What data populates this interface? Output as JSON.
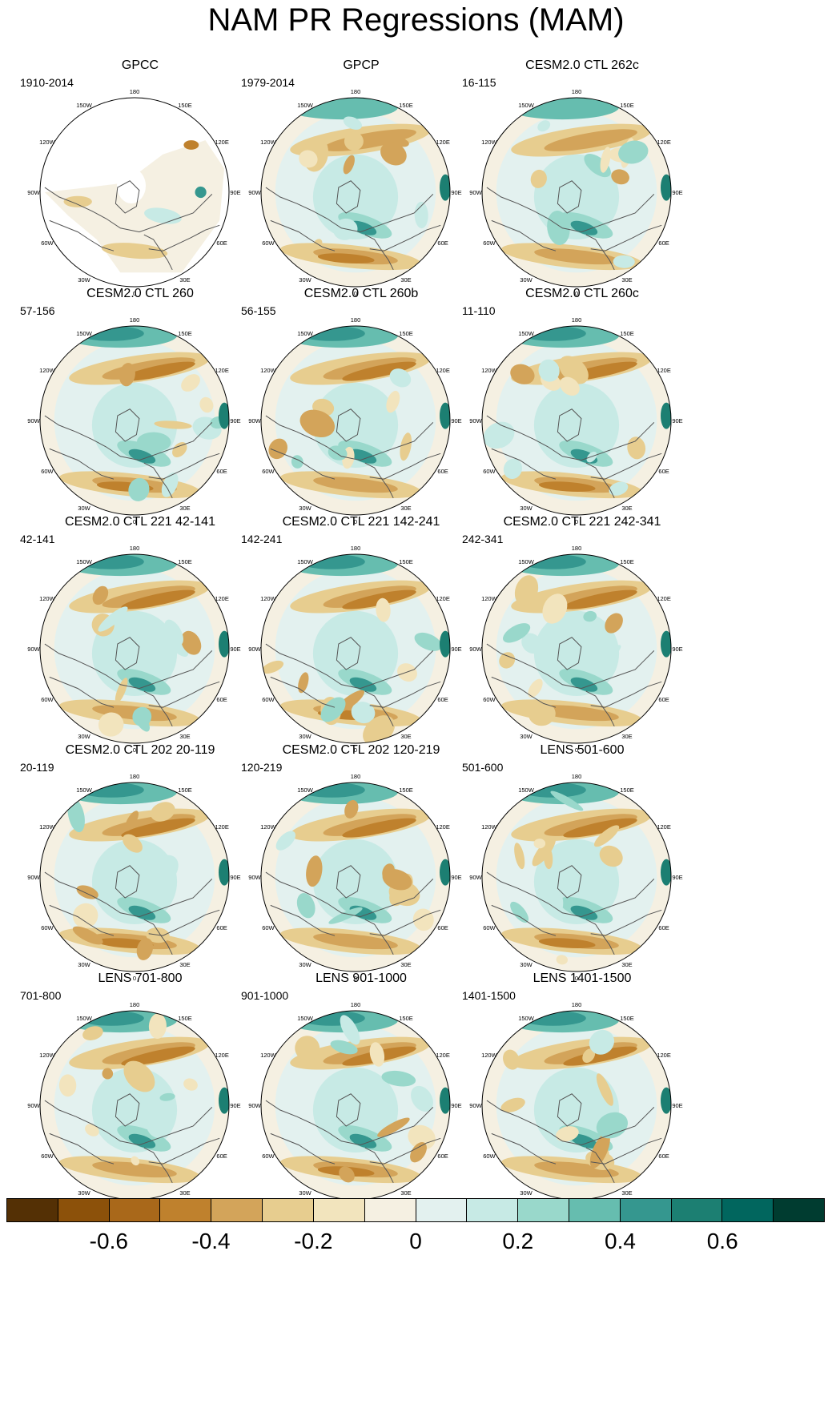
{
  "title": "NAM PR Regressions (MAM)",
  "panels": [
    {
      "title": "GPCC",
      "period": "1910-2014"
    },
    {
      "title": "GPCP",
      "period": "1979-2014"
    },
    {
      "title": "CESM2.0 CTL 262c",
      "period": "16-115"
    },
    {
      "title": "CESM2.0 CTL 260",
      "period": "57-156"
    },
    {
      "title": "CESM2.0 CTL 260b",
      "period": "56-155"
    },
    {
      "title": "CESM2.0 CTL 260c",
      "period": "11-110"
    },
    {
      "title": "CESM2.0 CTL 221 42-141",
      "period": "42-141"
    },
    {
      "title": "CESM2.0 CTL 221 142-241",
      "period": "142-241"
    },
    {
      "title": "CESM2.0 CTL 221 242-341",
      "period": "242-341"
    },
    {
      "title": "CESM2.0 CTL 202 20-119",
      "period": "20-119"
    },
    {
      "title": "CESM2.0 CTL 202 120-219",
      "period": "120-219"
    },
    {
      "title": "LENS 501-600",
      "period": "501-600"
    },
    {
      "title": "LENS 701-800",
      "period": "701-800"
    },
    {
      "title": "LENS 901-1000",
      "period": "901-1000"
    },
    {
      "title": "LENS 1401-1500",
      "period": "1401-1500"
    }
  ],
  "lon_labels": [
    "180",
    "150E",
    "120E",
    "90E",
    "60E",
    "30E",
    "0",
    "30W",
    "60W",
    "90W",
    "120W",
    "150W"
  ],
  "colorbar": {
    "colors": [
      "#543005",
      "#8c510a",
      "#a9681a",
      "#bf812d",
      "#d3a45a",
      "#e7cd8f",
      "#f2e4bd",
      "#f5f0e2",
      "#e3f1ef",
      "#c7eae5",
      "#99d8cb",
      "#66bdaf",
      "#35978f",
      "#1c7f72",
      "#01665e",
      "#003c30"
    ],
    "tick_labels": [
      "-0.6",
      "-0.4",
      "-0.2",
      "0",
      "0.2",
      "0.4",
      "0.6"
    ],
    "tick_values": [
      -0.6,
      -0.4,
      -0.2,
      0,
      0.2,
      0.4,
      0.6
    ],
    "range": [
      -0.8,
      0.8
    ]
  }
}
